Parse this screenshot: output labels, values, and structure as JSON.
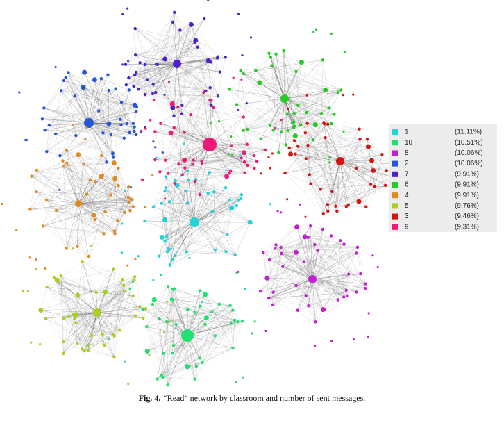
{
  "legend": {
    "items": [
      {
        "label": "1",
        "share": "(11.11%)",
        "color": "#1fd5d5"
      },
      {
        "label": "10",
        "share": "(10.51%)",
        "color": "#20e070"
      },
      {
        "label": "8",
        "share": "(10.06%)",
        "color": "#c020d0"
      },
      {
        "label": "2",
        "share": "(10.06%)",
        "color": "#2456d8"
      },
      {
        "label": "7",
        "share": "(9.91%)",
        "color": "#5020c8"
      },
      {
        "label": "6",
        "share": "(9.91%)",
        "color": "#22cc22"
      },
      {
        "label": "4",
        "share": "(9.91%)",
        "color": "#e08a20"
      },
      {
        "label": "5",
        "share": "(9.76%)",
        "color": "#a8d020"
      },
      {
        "label": "3",
        "share": "(9.46%)",
        "color": "#d81010"
      },
      {
        "label": "9",
        "share": "(9.31%)",
        "color": "#ee1a7a"
      }
    ]
  },
  "caption": {
    "label": "Fig. 4.",
    "text": "“Read” network by classroom and number of sent messages."
  }
}
